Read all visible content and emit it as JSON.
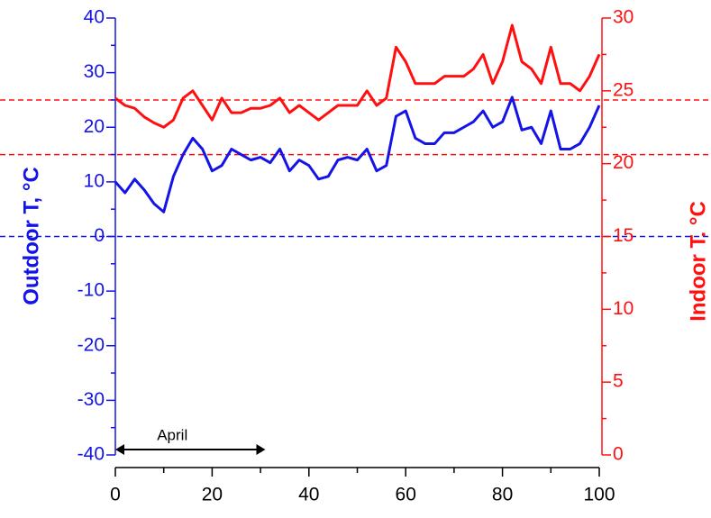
{
  "chart_data": {
    "type": "line",
    "y_label": "Outdoor T, °C",
    "y2_label": "Indoor T. °C",
    "x": [
      0,
      2,
      4,
      6,
      8,
      10,
      12,
      14,
      16,
      18,
      20,
      22,
      24,
      26,
      28,
      30,
      32,
      34,
      36,
      38,
      40,
      42,
      44,
      46,
      48,
      50,
      52,
      54,
      56,
      58,
      60,
      62,
      64,
      66,
      68,
      70,
      72,
      74,
      76,
      78,
      80,
      82,
      84,
      86,
      88,
      90,
      92,
      94,
      96,
      98,
      100
    ],
    "series": [
      {
        "name": "Outdoor",
        "color": "#1414e6",
        "axis": "y",
        "values": [
          10,
          8,
          10.5,
          8.5,
          6,
          4.5,
          11,
          15,
          18,
          16,
          12,
          13,
          16,
          15,
          14,
          14.5,
          13.5,
          16,
          12,
          14,
          13,
          10.5,
          11,
          14,
          14.5,
          14,
          16,
          12,
          13,
          22,
          23,
          18,
          17,
          17,
          19,
          19,
          20,
          21,
          23,
          20,
          21,
          25.5,
          19.5,
          20,
          17,
          23,
          16,
          16,
          17,
          20,
          24
        ]
      },
      {
        "name": "Indoor",
        "color": "#ff1010",
        "axis": "y2",
        "values": [
          24.5,
          24,
          23.8,
          23.2,
          22.8,
          22.5,
          23,
          24.5,
          25,
          24,
          23,
          24.5,
          23.5,
          23.5,
          23.8,
          23.8,
          24,
          24.5,
          23.5,
          24,
          23.5,
          23,
          23.5,
          24,
          24,
          24,
          25,
          24,
          24.5,
          28,
          27,
          25.5,
          25.5,
          25.5,
          26,
          26,
          26,
          26.5,
          27.5,
          25.5,
          27,
          29.5,
          27,
          26.5,
          25.5,
          28,
          25.5,
          25.5,
          25,
          26,
          27.5
        ]
      }
    ],
    "xlim": [
      0,
      100
    ],
    "xticks": [
      0,
      20,
      40,
      60,
      80,
      100
    ],
    "ylim": [
      -40,
      40
    ],
    "yticks": [
      -40,
      -30,
      -20,
      -10,
      0,
      10,
      20,
      30,
      40
    ],
    "y2lim": [
      0,
      30
    ],
    "y2ticks": [
      0,
      5,
      10,
      15,
      20,
      25,
      30
    ],
    "reference_lines": [
      {
        "value": 0,
        "color": "#1414e6"
      },
      {
        "value": 25,
        "color": "#ff1010"
      },
      {
        "value": 15,
        "color": "#ff1010"
      }
    ],
    "annotation": {
      "text": "April",
      "x": [
        0,
        31
      ]
    }
  }
}
